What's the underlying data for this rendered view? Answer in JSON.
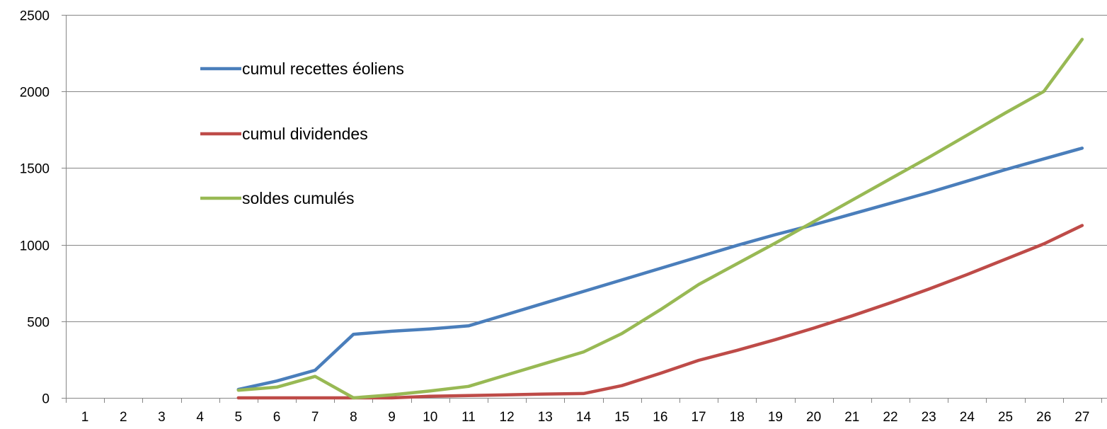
{
  "chart_data": {
    "type": "line",
    "title": "",
    "xlabel": "",
    "ylabel": "",
    "x": [
      1,
      2,
      3,
      4,
      5,
      6,
      7,
      8,
      9,
      10,
      11,
      12,
      13,
      14,
      15,
      16,
      17,
      18,
      19,
      20,
      21,
      22,
      23,
      24,
      25,
      26,
      27
    ],
    "ylim": [
      0,
      2500
    ],
    "yticks": [
      0,
      500,
      1000,
      1500,
      2000,
      2500
    ],
    "grid": true,
    "legend_position": "top-left",
    "series": [
      {
        "name": "cumul recettes éoliens",
        "color": "#4a7ebb",
        "values": [
          null,
          null,
          null,
          null,
          55,
          110,
          180,
          415,
          435,
          450,
          470,
          545,
          620,
          695,
          770,
          845,
          920,
          995,
          1065,
          1130,
          1200,
          1270,
          1340,
          1415,
          1490,
          1560,
          1630
        ]
      },
      {
        "name": "cumul dividendes",
        "color": "#be4b48",
        "values": [
          null,
          null,
          null,
          null,
          0,
          0,
          0,
          0,
          0,
          10,
          15,
          20,
          25,
          28,
          80,
          160,
          245,
          310,
          380,
          455,
          535,
          620,
          710,
          805,
          905,
          1005,
          1125
        ]
      },
      {
        "name": "soldes cumulés",
        "color": "#98b954",
        "values": [
          null,
          null,
          null,
          null,
          50,
          70,
          140,
          0,
          20,
          45,
          75,
          150,
          225,
          300,
          420,
          575,
          740,
          875,
          1010,
          1150,
          1290,
          1430,
          1570,
          1715,
          1860,
          2000,
          2340
        ]
      }
    ]
  }
}
